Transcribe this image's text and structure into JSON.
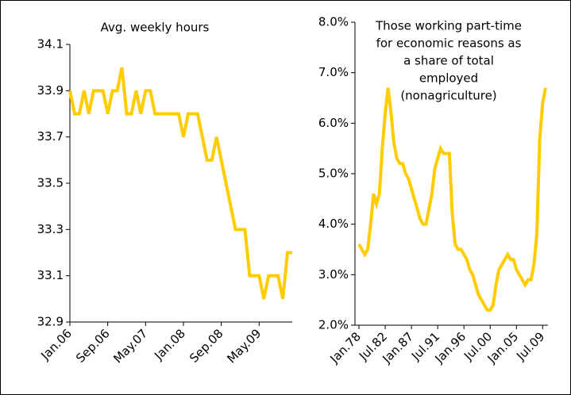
{
  "chart_data": [
    {
      "type": "line",
      "title": [
        "Avg. weekly hours"
      ],
      "categories": [
        "Jan.06",
        null,
        null,
        null,
        null,
        null,
        null,
        null,
        "Sep.06",
        null,
        null,
        null,
        null,
        null,
        null,
        null,
        "May.07",
        null,
        null,
        null,
        null,
        null,
        null,
        null,
        "Jan.08",
        null,
        null,
        null,
        null,
        null,
        null,
        null,
        "Sep.08",
        null,
        null,
        null,
        null,
        null,
        null,
        null,
        "May.09",
        null,
        null,
        null,
        null,
        null,
        null,
        null
      ],
      "series": [
        {
          "color": "#ffcc00",
          "values": [
            33.9,
            33.8,
            33.8,
            33.9,
            33.8,
            33.9,
            33.9,
            33.9,
            33.8,
            33.9,
            33.9,
            34.0,
            33.8,
            33.8,
            33.9,
            33.8,
            33.9,
            33.9,
            33.8,
            33.8,
            33.8,
            33.8,
            33.8,
            33.8,
            33.7,
            33.8,
            33.8,
            33.8,
            33.7,
            33.6,
            33.6,
            33.7,
            33.6,
            33.5,
            33.4,
            33.3,
            33.3,
            33.3,
            33.1,
            33.1,
            33.1,
            33.0,
            33.1,
            33.1,
            33.1,
            33.0,
            33.2,
            33.2
          ]
        }
      ],
      "ylim": [
        32.9,
        34.1
      ],
      "yticks": [
        32.9,
        33.1,
        33.3,
        33.5,
        33.7,
        33.9,
        34.1
      ]
    },
    {
      "type": "line",
      "title": [
        "Those working part-time",
        "for economic reasons as",
        "a share of total",
        "employed",
        "(nonagriculture)"
      ],
      "categories": [
        "Jan.78",
        null,
        null,
        null,
        null,
        null,
        null,
        null,
        null,
        "Jul.82",
        null,
        null,
        null,
        null,
        null,
        null,
        null,
        null,
        "Jan.87",
        null,
        null,
        null,
        null,
        null,
        null,
        null,
        null,
        "Jul.91",
        null,
        null,
        null,
        null,
        null,
        null,
        null,
        null,
        "Jan.96",
        null,
        null,
        null,
        null,
        null,
        null,
        null,
        null,
        "Jul.00",
        null,
        null,
        null,
        null,
        null,
        null,
        null,
        null,
        "Jan.05",
        null,
        null,
        null,
        null,
        null,
        null,
        null,
        null,
        "Jul.09",
        null
      ],
      "series": [
        {
          "color": "#ffcc00",
          "values": [
            3.6,
            3.5,
            3.4,
            3.5,
            4.0,
            4.6,
            4.4,
            4.6,
            5.5,
            6.2,
            6.7,
            6.2,
            5.6,
            5.3,
            5.2,
            5.2,
            5.0,
            4.9,
            4.7,
            4.5,
            4.3,
            4.1,
            4.0,
            4.0,
            4.3,
            4.6,
            5.1,
            5.3,
            5.5,
            5.4,
            5.4,
            5.4,
            4.2,
            3.6,
            3.5,
            3.5,
            3.4,
            3.3,
            3.1,
            3.0,
            2.8,
            2.6,
            2.5,
            2.4,
            2.3,
            2.3,
            2.4,
            2.8,
            3.1,
            3.2,
            3.3,
            3.4,
            3.3,
            3.3,
            3.1,
            3.0,
            2.9,
            2.8,
            2.9,
            2.9,
            3.2,
            3.8,
            5.7,
            6.4,
            6.7
          ]
        }
      ],
      "ylim": [
        2,
        8
      ],
      "yticks": [
        {
          "value": 2,
          "label": "2.0%"
        },
        {
          "value": 3,
          "label": "3.0%"
        },
        {
          "value": 4,
          "label": "4.0%"
        },
        {
          "value": 5,
          "label": "5.0%"
        },
        {
          "value": 6,
          "label": "6.0%"
        },
        {
          "value": 7,
          "label": "7.0%"
        },
        {
          "value": 8,
          "label": "8.0%"
        }
      ]
    }
  ]
}
